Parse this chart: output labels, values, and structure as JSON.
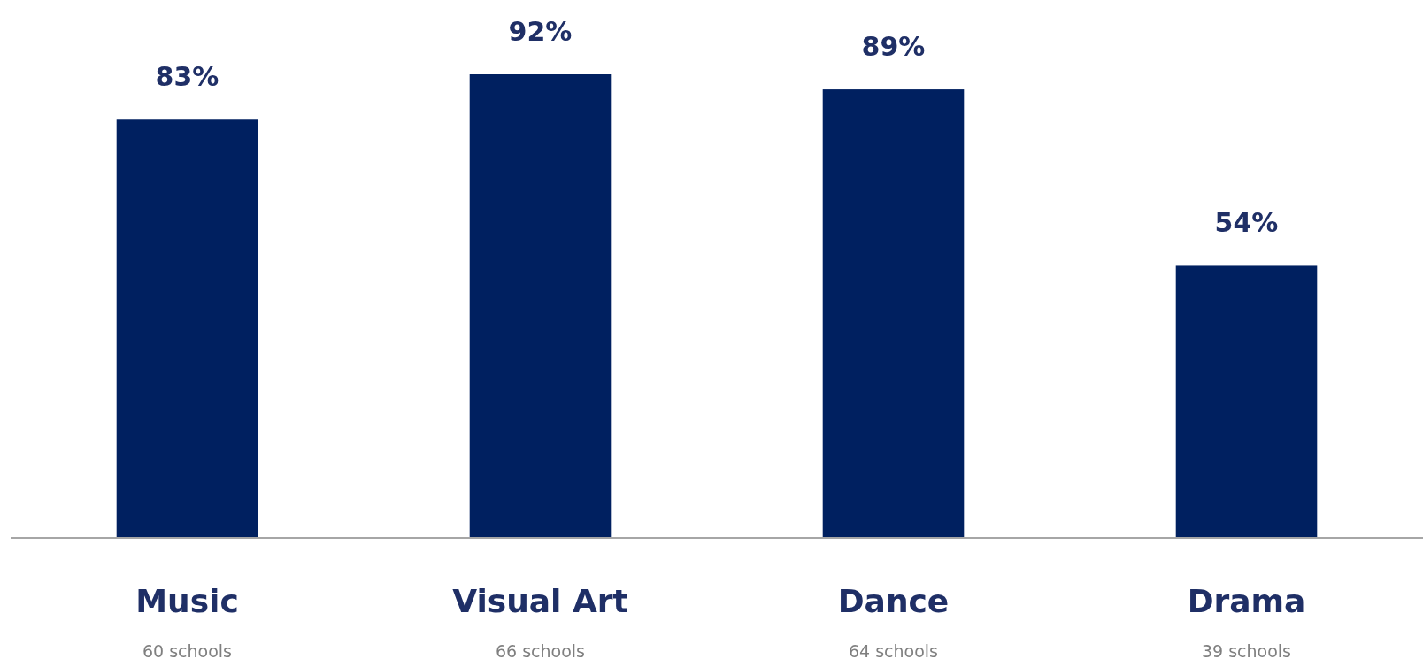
{
  "chart_data": {
    "type": "bar",
    "categories": [
      "Music",
      "Visual Art",
      "Dance",
      "Drama"
    ],
    "values": [
      83,
      92,
      89,
      54
    ],
    "value_labels": [
      "83%",
      "92%",
      "89%",
      "54%"
    ],
    "color": "#002060",
    "annotations": [
      "60 schools",
      "66 schools",
      "64 schools",
      "39 schools"
    ]
  }
}
